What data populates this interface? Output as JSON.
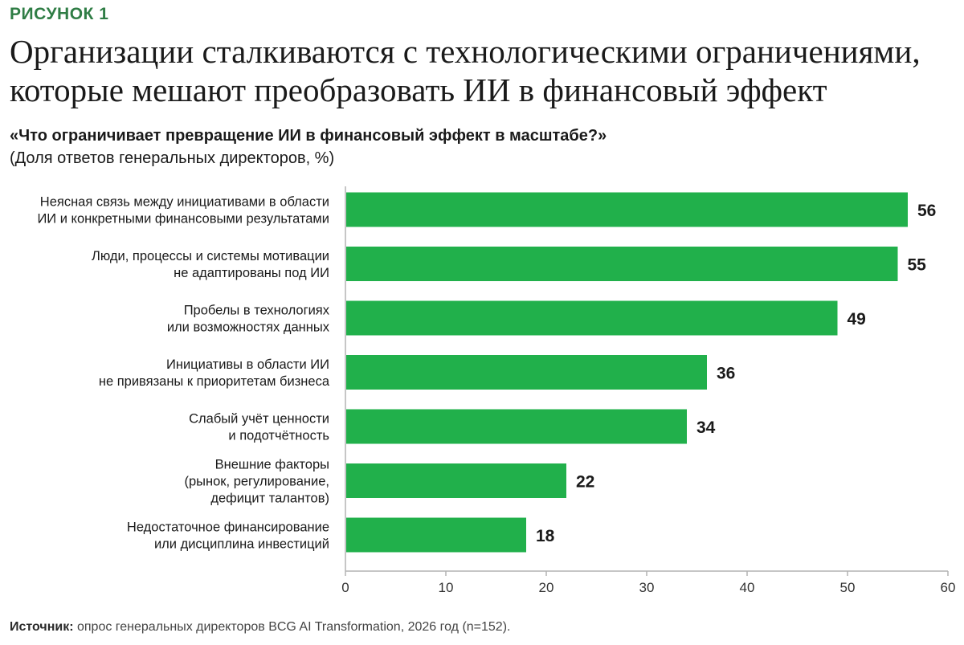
{
  "figure_label": "РИСУНОК 1",
  "title_lines": [
    "Организации сталкиваются с технологическими ограничениями,",
    "которые мешают преобразовать ИИ в финансовый эффект"
  ],
  "question": "«Что ограничивает превращение ИИ в финансовый эффект в масштабе?»",
  "subtitle": "(Доля ответов генеральных директоров, %)",
  "source": {
    "label": "Источник:",
    "text": " опрос генеральных директоров BCG AI Transformation, 2026 год (n=152)."
  },
  "colors": {
    "bar": "#21b04b",
    "axis": "#b3b3b3",
    "text": "#1a1a1a",
    "label": "#2f7d45"
  },
  "chart_data": {
    "type": "bar",
    "orientation": "horizontal",
    "title": "Организации сталкиваются с технологическими ограничениями, которые мешают преобразовать ИИ в финансовый эффект",
    "xlabel": "",
    "ylabel": "",
    "xlim": [
      0,
      60
    ],
    "xticks": [
      0,
      10,
      20,
      30,
      40,
      50,
      60
    ],
    "grid": false,
    "legend": "none",
    "categories": [
      [
        "Неясная связь между инициативами в области",
        "ИИ и конкретными финансовыми результатами"
      ],
      [
        "Люди, процессы и системы мотивации",
        "не адаптированы под ИИ"
      ],
      [
        "Пробелы в технологиях",
        "или возможностях данных"
      ],
      [
        "Инициативы в области ИИ",
        "не привязаны к приоритетам бизнеса"
      ],
      [
        "Слабый учёт ценности",
        "и подотчётность"
      ],
      [
        "Внешние факторы",
        "(рынок, регулирование,",
        "дефицит талантов)"
      ],
      [
        "Недостаточное финансирование",
        "или дисциплина инвестиций"
      ]
    ],
    "values": [
      56,
      55,
      49,
      36,
      34,
      22,
      18
    ]
  }
}
